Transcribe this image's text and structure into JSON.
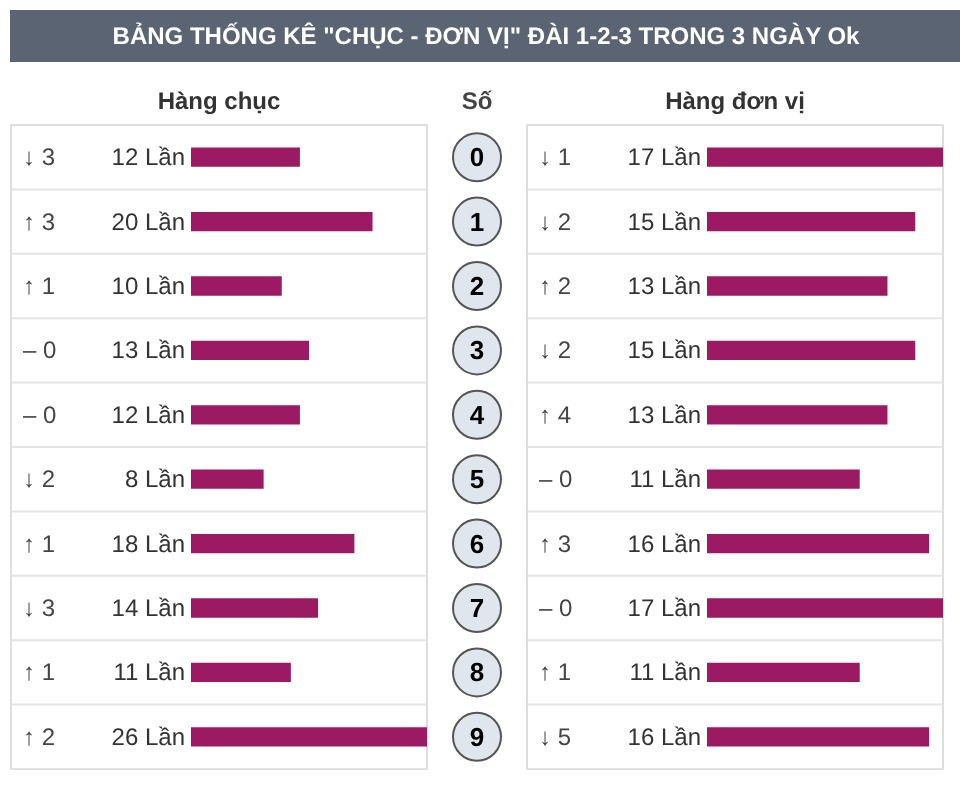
{
  "chart_data": [
    {
      "type": "bar",
      "orientation": "horizontal",
      "title": "BẢNG THỐNG KÊ \"CHỤC - ĐƠN VỊ\" ĐÀI 1-2-3 TRONG 3 NGÀY Ok",
      "subtitle": "Hàng chục",
      "ylabel": "Số",
      "categories": [
        "0",
        "1",
        "2",
        "3",
        "4",
        "5",
        "6",
        "7",
        "8",
        "9"
      ],
      "color": "#9b1a63",
      "values": [
        12,
        20,
        10,
        13,
        12,
        8,
        18,
        14,
        11,
        26
      ],
      "value_labels": [
        "12 Lần",
        "20 Lần",
        "10 Lần",
        "13 Lần",
        "12 Lần",
        "8 Lần",
        "18 Lần",
        "14 Lần",
        "11 Lần",
        "26 Lần"
      ],
      "annotations": [
        "↓ 3",
        "↑ 3",
        "↑ 1",
        "– 0",
        "– 0",
        "↓ 2",
        "↑ 1",
        "↓ 3",
        "↑ 1",
        "↑ 2"
      ]
    },
    {
      "type": "bar",
      "orientation": "horizontal",
      "subtitle": "Hàng đơn vị",
      "categories": [
        "0",
        "1",
        "2",
        "3",
        "4",
        "5",
        "6",
        "7",
        "8",
        "9"
      ],
      "color": "#9b1a63",
      "values": [
        17,
        15,
        13,
        15,
        13,
        11,
        16,
        17,
        11,
        16
      ],
      "value_labels": [
        "17 Lần",
        "15 Lần",
        "13 Lần",
        "15 Lần",
        "13 Lần",
        "11 Lần",
        "16 Lần",
        "17 Lần",
        "11 Lần",
        "16 Lần"
      ],
      "tick_labels": false,
      "annotations": [
        "↓ 1",
        "↓ 2",
        "↑ 2",
        "↓ 2",
        "↑ 4",
        "– 0",
        "↑ 3",
        "– 0",
        "↑ 1",
        "↓ 5"
      ]
    }
  ]
}
